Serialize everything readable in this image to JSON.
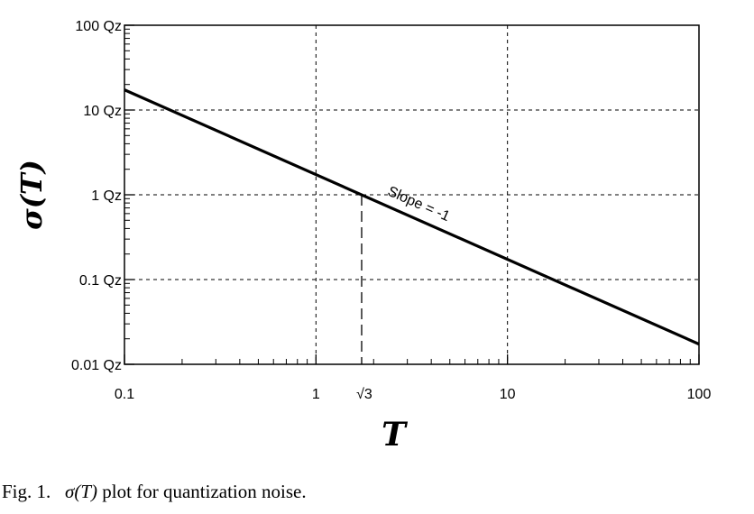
{
  "chart_data": {
    "type": "line",
    "xlabel": "T",
    "ylabel": "σ(T)",
    "x_scale": "log",
    "y_scale": "log",
    "xlim": [
      0.1,
      100
    ],
    "ylim": [
      0.01,
      100
    ],
    "unit": "Qz",
    "x_ticks": [
      {
        "value": 0.1,
        "label": "0.1"
      },
      {
        "value": 1,
        "label": "1"
      },
      {
        "value": 10,
        "label": "10"
      },
      {
        "value": 100,
        "label": "100"
      }
    ],
    "y_ticks": [
      {
        "value": 100,
        "label": "100 Qz"
      },
      {
        "value": 10,
        "label": "10 Qz"
      },
      {
        "value": 1,
        "label": "1 Qz"
      },
      {
        "value": 0.1,
        "label": "0.1 Qz"
      },
      {
        "value": 0.01,
        "label": "0.01 Qz"
      }
    ],
    "grid": true,
    "series": [
      {
        "x": [
          0.1,
          100
        ],
        "y": [
          17.3,
          0.0173
        ],
        "color": "#000000"
      }
    ],
    "annotations": [
      {
        "text": "Slope = -1",
        "x": 5,
        "y": 0.75
      },
      {
        "text": "√3",
        "x": 1.732,
        "y": 1,
        "marker": "dashed-drop-line"
      }
    ]
  },
  "caption": {
    "prefix": "Fig. 1.",
    "symbol": "σ(T)",
    "text": "plot for quantization noise."
  }
}
